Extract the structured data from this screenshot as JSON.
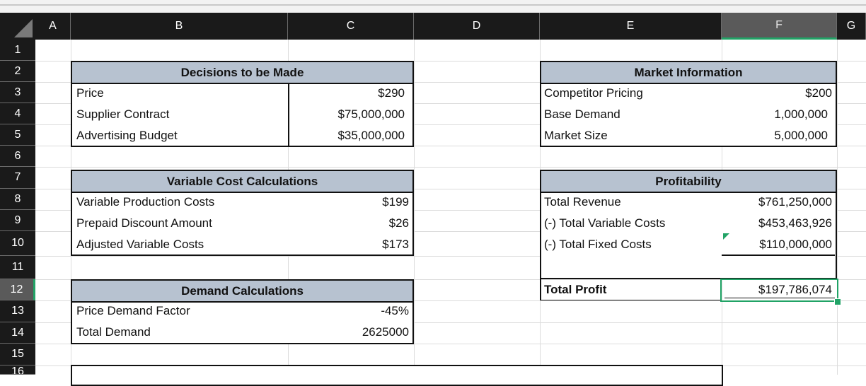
{
  "columns": {
    "A": "A",
    "B": "B",
    "C": "C",
    "D": "D",
    "E": "E",
    "F": "F",
    "G": "G"
  },
  "rows": [
    "1",
    "2",
    "3",
    "4",
    "5",
    "6",
    "7",
    "8",
    "9",
    "10",
    "11",
    "12",
    "13",
    "14",
    "15",
    "16"
  ],
  "decisions": {
    "title": "Decisions to be Made",
    "items": [
      {
        "label": "Price",
        "value": "$290"
      },
      {
        "label": "Supplier Contract",
        "value": "$75,000,000"
      },
      {
        "label": "Advertising Budget",
        "value": "$35,000,000"
      }
    ]
  },
  "market": {
    "title": "Market Information",
    "items": [
      {
        "label": "Competitor Pricing",
        "value": "$200"
      },
      {
        "label": "Base Demand",
        "value": "1,000,000"
      },
      {
        "label": "Market Size",
        "value": "5,000,000"
      }
    ]
  },
  "variable": {
    "title": "Variable Cost Calculations",
    "items": [
      {
        "label": "Variable Production Costs",
        "value": "$199"
      },
      {
        "label": "Prepaid Discount Amount",
        "value": "$26"
      },
      {
        "label": "Adjusted Variable Costs",
        "value": "$173"
      }
    ]
  },
  "profit": {
    "title": "Profitability",
    "items": [
      {
        "label": "Total Revenue",
        "value": "$761,250,000"
      },
      {
        "label": "(-) Total Variable Costs",
        "value": "$453,463,926"
      },
      {
        "label": "(-) Total Fixed Costs",
        "value": "$110,000,000"
      }
    ],
    "total_label": "Total Profit",
    "total_value": "$197,786,074"
  },
  "demand": {
    "title": "Demand Calculations",
    "items": [
      {
        "label": "Price Demand Factor",
        "value": "-45%"
      },
      {
        "label": "Total Demand",
        "value": "2625000"
      }
    ]
  },
  "colors": {
    "header_bg": "#b7c2d0",
    "selection": "#21a366",
    "grid_header": "#1a1a1a"
  }
}
